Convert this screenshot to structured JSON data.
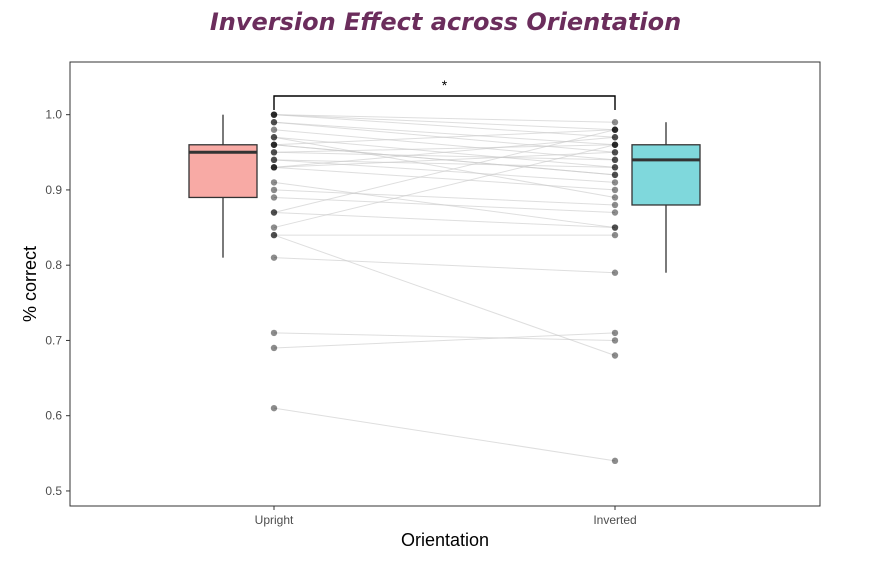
{
  "chart_data": {
    "type": "box",
    "title": "Inversion Effect across Orientation",
    "xlabel": "Orientation",
    "ylabel": "% correct",
    "categories": [
      "Upright",
      "Inverted"
    ],
    "ylim": [
      0.48,
      1.07
    ],
    "yticks": [
      0.5,
      0.6,
      0.7,
      0.8,
      0.9,
      1.0
    ],
    "ytick_labels": [
      "0.5",
      "0.6",
      "0.7",
      "0.8",
      "0.9",
      "1.0"
    ],
    "grid": false,
    "legend": "none",
    "boxes": [
      {
        "category": "Upright",
        "min": 0.81,
        "q1": 0.89,
        "median": 0.95,
        "q3": 0.96,
        "max": 1.0,
        "color": "#f8aaa5"
      },
      {
        "category": "Inverted",
        "min": 0.79,
        "q1": 0.88,
        "median": 0.94,
        "q3": 0.96,
        "max": 0.99,
        "color": "#7fd8dc"
      }
    ],
    "paired_points": [
      [
        1.0,
        0.99
      ],
      [
        1.0,
        0.98
      ],
      [
        1.0,
        0.97
      ],
      [
        0.99,
        0.96
      ],
      [
        0.99,
        0.95
      ],
      [
        0.98,
        0.94
      ],
      [
        0.97,
        0.93
      ],
      [
        0.96,
        0.98
      ],
      [
        0.96,
        0.92
      ],
      [
        0.95,
        0.96
      ],
      [
        0.95,
        0.94
      ],
      [
        0.94,
        0.93
      ],
      [
        0.94,
        0.91
      ],
      [
        0.93,
        0.97
      ],
      [
        0.93,
        0.95
      ],
      [
        0.91,
        0.85
      ],
      [
        0.9,
        0.88
      ],
      [
        0.89,
        0.87
      ],
      [
        0.87,
        0.98
      ],
      [
        0.87,
        0.85
      ],
      [
        0.85,
        0.96
      ],
      [
        0.84,
        0.84
      ],
      [
        0.81,
        0.79
      ],
      [
        0.71,
        0.7
      ],
      [
        0.69,
        0.71
      ],
      [
        0.84,
        0.68
      ],
      [
        0.61,
        0.54
      ],
      [
        0.97,
        0.89
      ],
      [
        0.96,
        0.92
      ],
      [
        0.93,
        0.9
      ]
    ],
    "annotation": {
      "text": "*",
      "between": [
        "Upright",
        "Inverted"
      ]
    }
  }
}
